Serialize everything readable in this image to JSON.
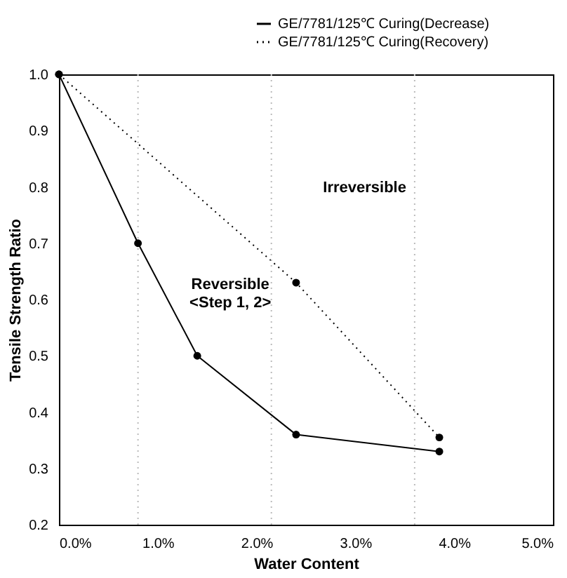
{
  "chart_data": {
    "type": "line",
    "xlabel": "Water Content",
    "ylabel": "Tensile Strength Ratio",
    "series": [
      {
        "name": "GE/7781/125℃ Curing(Decrease)",
        "color": "#000000",
        "line_style": "solid",
        "x": [
          0,
          0.8,
          1.4,
          2.4,
          3.85
        ],
        "values": [
          1.0,
          0.7,
          0.5,
          0.36,
          0.33
        ]
      },
      {
        "name": "GE/7781/125℃ Curing(Recovery)",
        "color": "#000000",
        "line_style": "dotted",
        "x": [
          0,
          2.4,
          3.85
        ],
        "values": [
          1.0,
          0.63,
          0.355
        ]
      }
    ],
    "marker": "circle",
    "xlim": [
      0,
      5
    ],
    "ylim": [
      0.2,
      1.0
    ],
    "xticks": [
      {
        "value": 0,
        "label": "0.0%"
      },
      {
        "value": 1,
        "label": "1.0%"
      },
      {
        "value": 2,
        "label": "2.0%"
      },
      {
        "value": 3,
        "label": "3.0%"
      },
      {
        "value": 4,
        "label": "4.0%"
      },
      {
        "value": 5,
        "label": "5.0%"
      }
    ],
    "yticks": [
      {
        "value": 0.2,
        "label": "0.2"
      },
      {
        "value": 0.3,
        "label": "0.3"
      },
      {
        "value": 0.4,
        "label": "0.4"
      },
      {
        "value": 0.5,
        "label": "0.5"
      },
      {
        "value": 0.6,
        "label": "0.6"
      },
      {
        "value": 0.7,
        "label": "0.7"
      },
      {
        "value": 0.8,
        "label": "0.8"
      },
      {
        "value": 0.9,
        "label": "0.9"
      },
      {
        "value": 1.0,
        "label": "1.0"
      }
    ],
    "ref_lines": [
      {
        "axis": "x",
        "value": 0.8,
        "color": "#bbbbbb",
        "line_style": "dotted"
      },
      {
        "axis": "x",
        "value": 2.15,
        "color": "#bbbbbb",
        "line_style": "dotted"
      },
      {
        "axis": "x",
        "value": 3.6,
        "color": "#bbbbbb",
        "line_style": "dotted"
      }
    ],
    "annotations": [
      "Reversible\n<Step 1, 2>",
      "Irreversible"
    ],
    "grid": false,
    "legend": "top right"
  }
}
